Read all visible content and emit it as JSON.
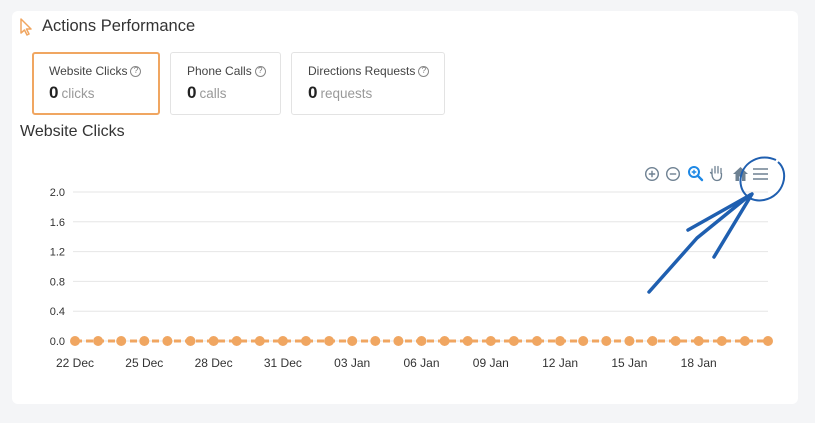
{
  "section": {
    "title": "Actions Performance"
  },
  "tiles": [
    {
      "label": "Website Clicks",
      "value": "0",
      "unit": "clicks",
      "active": true
    },
    {
      "label": "Phone Calls",
      "value": "0",
      "unit": "calls",
      "active": false
    },
    {
      "label": "Directions Requests",
      "value": "0",
      "unit": "requests",
      "active": false
    }
  ],
  "chart_title": "Website Clicks",
  "toolbar": {
    "icons": [
      "zoom-in-icon",
      "zoom-out-icon",
      "zoom-select-icon",
      "pan-icon",
      "home-icon",
      "menu-icon"
    ]
  },
  "colors": {
    "accent": "#f0a661",
    "annotation": "#1f5fb0",
    "toolbar_active": "#1e88e5"
  },
  "chart_data": {
    "type": "line",
    "ylim": [
      0,
      2.0
    ],
    "y_ticks": [
      "0.0",
      "0.4",
      "0.8",
      "1.2",
      "1.6",
      "2.0"
    ],
    "x_tick_labels": [
      "22 Dec",
      "25 Dec",
      "28 Dec",
      "31 Dec",
      "03 Jan",
      "06 Jan",
      "09 Jan",
      "12 Jan",
      "15 Jan",
      "18 Jan"
    ],
    "x_start": "22 Dec",
    "points": 31,
    "series": [
      {
        "values": [
          0,
          0,
          0,
          0,
          0,
          0,
          0,
          0,
          0,
          0,
          0,
          0,
          0,
          0,
          0,
          0,
          0,
          0,
          0,
          0,
          0,
          0,
          0,
          0,
          0,
          0,
          0,
          0,
          0,
          0,
          0
        ]
      }
    ],
    "grid": true
  }
}
